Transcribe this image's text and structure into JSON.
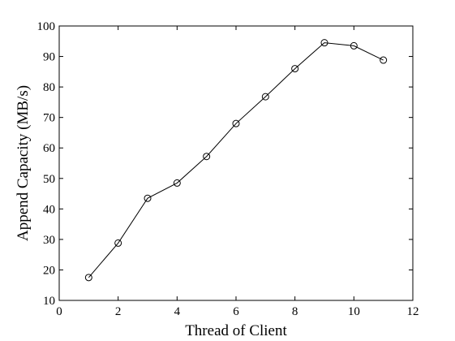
{
  "chart_data": {
    "type": "line",
    "xlabel": "Thread of Client",
    "ylabel": "Append Capacity (MB/s)",
    "xlim": [
      0,
      12
    ],
    "ylim": [
      10,
      100
    ],
    "xticks": [
      0,
      2,
      4,
      6,
      8,
      10,
      12
    ],
    "yticks": [
      10,
      20,
      30,
      40,
      50,
      60,
      70,
      80,
      90,
      100
    ],
    "grid": false,
    "marker": "circle",
    "line_color": "#000000",
    "series": [
      {
        "x": [
          1,
          2,
          3,
          4,
          5,
          6,
          7,
          8,
          9,
          10,
          11
        ],
        "values": [
          17.5,
          28.8,
          43.5,
          48.5,
          57.2,
          68.0,
          76.8,
          86.0,
          94.5,
          93.5,
          88.8
        ]
      }
    ]
  }
}
